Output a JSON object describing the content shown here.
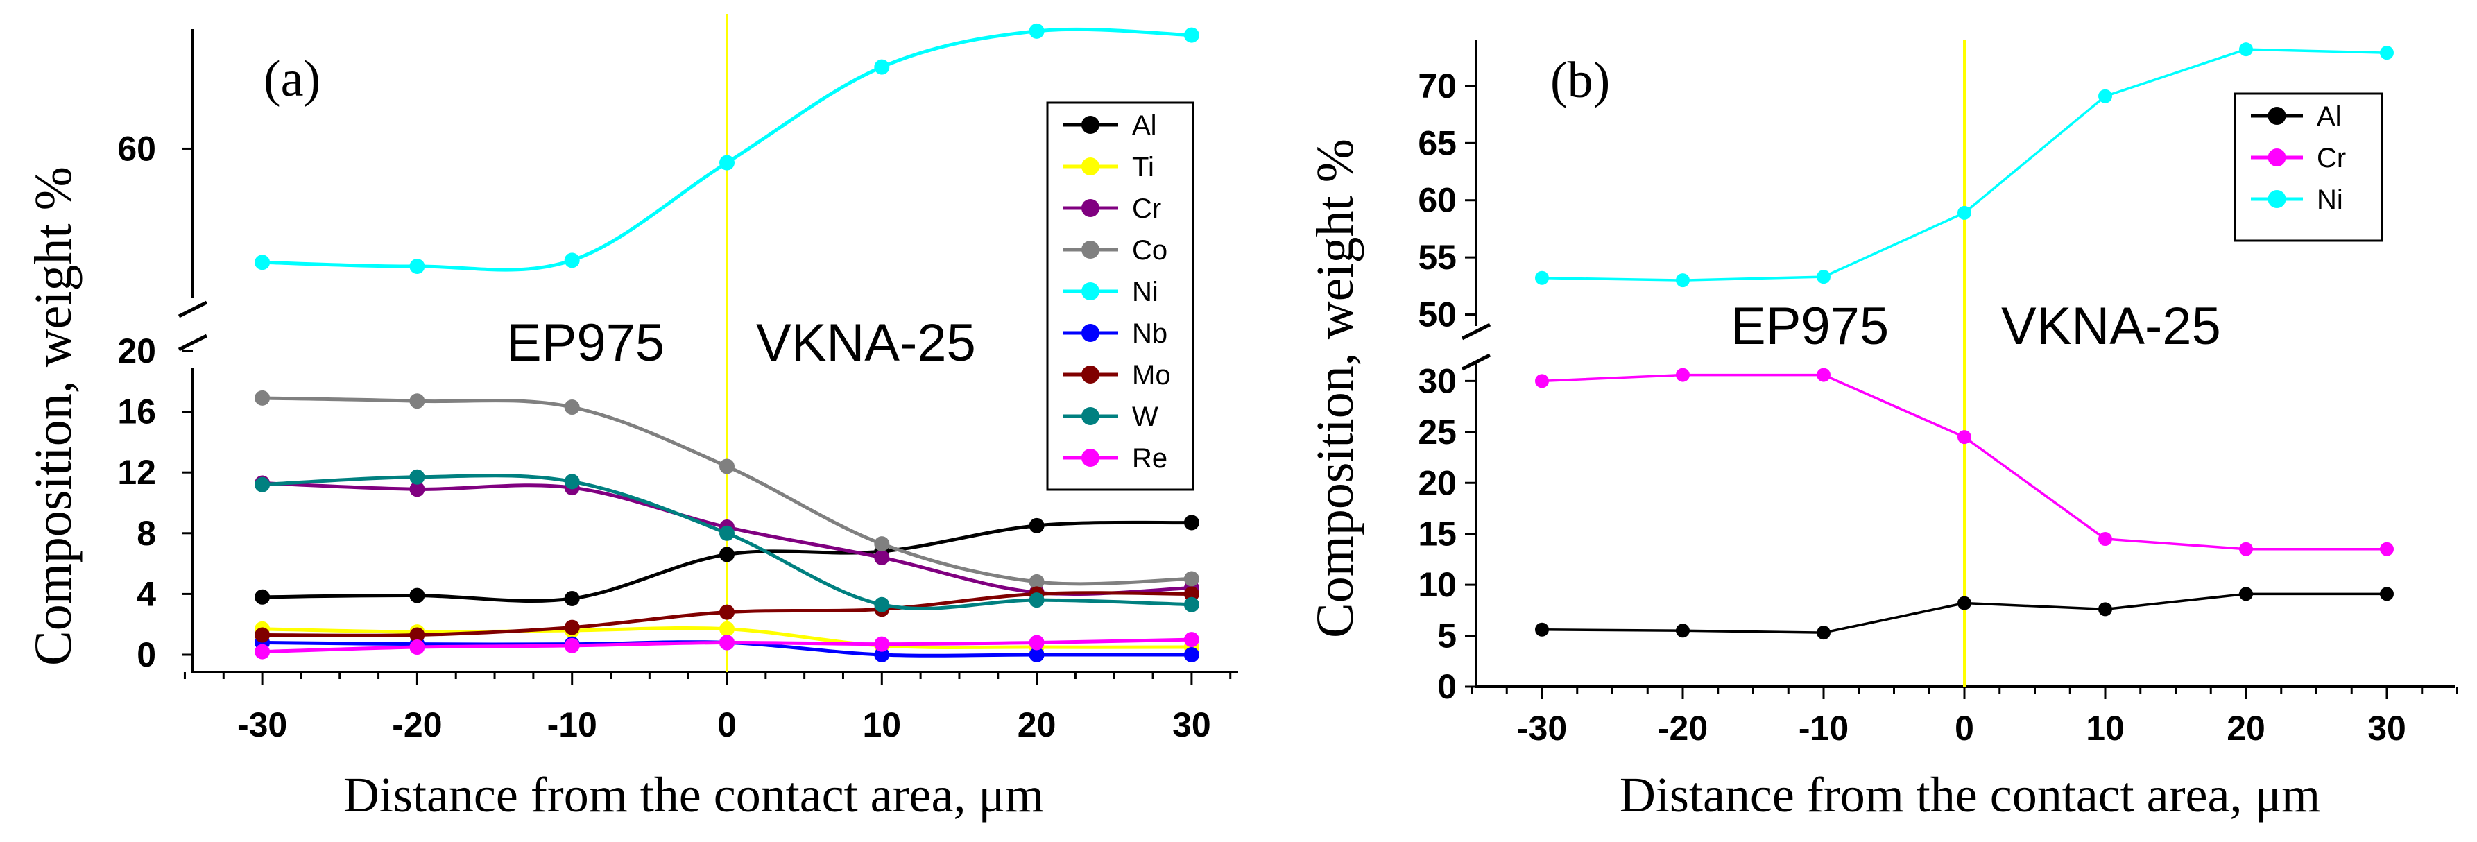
{
  "colors": {
    "Al": "#000000",
    "Ti": "#ffff00",
    "Cr_a": "#800080",
    "Co": "#808080",
    "Ni": "#00ffff",
    "Nb": "#0000ff",
    "Mo": "#800000",
    "W": "#008080",
    "Re": "#ff00ff",
    "Cr_b": "#ff00ff",
    "contact_line": "#ffff00",
    "axis": "#000000"
  },
  "chart_data": [
    {
      "type": "line",
      "panel_label": "(a)",
      "xlabel": "Distance from the contact area, μm",
      "ylabel": "Composition,  weight %",
      "region_labels": [
        "EP975",
        "VKNA-25"
      ],
      "x": [
        -30,
        -20,
        -10,
        0,
        10,
        20,
        30
      ],
      "xticks": [
        "-30",
        "-20",
        "-10",
        "0",
        "10",
        "20",
        "30"
      ],
      "xlim": [
        -35,
        33
      ],
      "contact_x": 0,
      "lower_axis": {
        "ylim": [
          0,
          20
        ],
        "ticks": [
          "0",
          "4",
          "8",
          "12",
          "16",
          "20"
        ],
        "tick_values": [
          0,
          4,
          8,
          12,
          16,
          20
        ]
      },
      "upper_axis": {
        "ylim": [
          52.5,
          66
        ],
        "ticks": [
          "60"
        ],
        "tick_values": [
          60
        ]
      },
      "legend_position": "right",
      "series": [
        {
          "name": "Al",
          "color_key": "Al",
          "axis": "lower",
          "values": [
            3.8,
            3.9,
            3.7,
            6.6,
            6.8,
            8.5,
            8.7
          ]
        },
        {
          "name": "Ti",
          "color_key": "Ti",
          "axis": "lower",
          "values": [
            1.7,
            1.5,
            1.6,
            1.7,
            0.6,
            0.5,
            0.5
          ]
        },
        {
          "name": "Cr",
          "color_key": "Cr_a",
          "axis": "lower",
          "values": [
            11.3,
            10.9,
            11.0,
            8.4,
            6.4,
            4.1,
            4.4
          ]
        },
        {
          "name": "Co",
          "color_key": "Co",
          "axis": "lower",
          "values": [
            16.9,
            16.7,
            16.3,
            12.4,
            7.3,
            4.8,
            5.0
          ]
        },
        {
          "name": "Ni",
          "color_key": "Ni",
          "axis": "upper",
          "values": [
            54.3,
            54.1,
            54.4,
            59.3,
            64.1,
            65.9,
            65.7
          ]
        },
        {
          "name": "Nb",
          "color_key": "Nb",
          "axis": "lower",
          "values": [
            0.8,
            0.7,
            0.7,
            0.8,
            0.0,
            0.0,
            0.0
          ]
        },
        {
          "name": "Mo",
          "color_key": "Mo",
          "axis": "lower",
          "values": [
            1.3,
            1.3,
            1.8,
            2.8,
            3.0,
            4.0,
            4.0
          ]
        },
        {
          "name": "W",
          "color_key": "W",
          "axis": "lower",
          "values": [
            11.2,
            11.7,
            11.4,
            8.0,
            3.3,
            3.6,
            3.3
          ]
        },
        {
          "name": "Re",
          "color_key": "Re",
          "axis": "lower",
          "values": [
            0.2,
            0.5,
            0.6,
            0.8,
            0.7,
            0.8,
            1.0
          ]
        }
      ]
    },
    {
      "type": "line",
      "panel_label": "(b)",
      "xlabel": "Distance from the contact area, μm",
      "ylabel": "Composition,  weight %",
      "region_labels": [
        "EP975",
        "VKNA-25"
      ],
      "x": [
        -30,
        -20,
        -10,
        0,
        10,
        20,
        30
      ],
      "xticks": [
        "-30",
        "-20",
        "-10",
        "0",
        "10",
        "20",
        "30"
      ],
      "xlim": [
        -35,
        35
      ],
      "contact_x": 0,
      "lower_axis": {
        "ylim": [
          0,
          32
        ],
        "ticks": [
          "0",
          "5",
          "10",
          "15",
          "20",
          "25",
          "30"
        ],
        "tick_values": [
          0,
          5,
          10,
          15,
          20,
          25,
          30
        ]
      },
      "upper_axis": {
        "ylim": [
          49,
          74
        ],
        "ticks": [
          "50",
          "55",
          "60",
          "65",
          "70"
        ],
        "tick_values": [
          50,
          55,
          60,
          65,
          70
        ]
      },
      "legend_position": "top-right",
      "series": [
        {
          "name": "Al",
          "color_key": "Al",
          "axis": "lower",
          "values": [
            5.6,
            5.5,
            5.3,
            8.2,
            7.6,
            9.1,
            9.1
          ]
        },
        {
          "name": "Cr",
          "color_key": "Cr_b",
          "axis": "lower",
          "values": [
            30.0,
            30.6,
            30.6,
            24.5,
            14.5,
            13.5,
            13.5
          ]
        },
        {
          "name": "Ni",
          "color_key": "Ni",
          "axis": "upper",
          "values": [
            53.2,
            53.0,
            53.3,
            58.9,
            69.1,
            73.2,
            72.9
          ]
        }
      ]
    }
  ]
}
